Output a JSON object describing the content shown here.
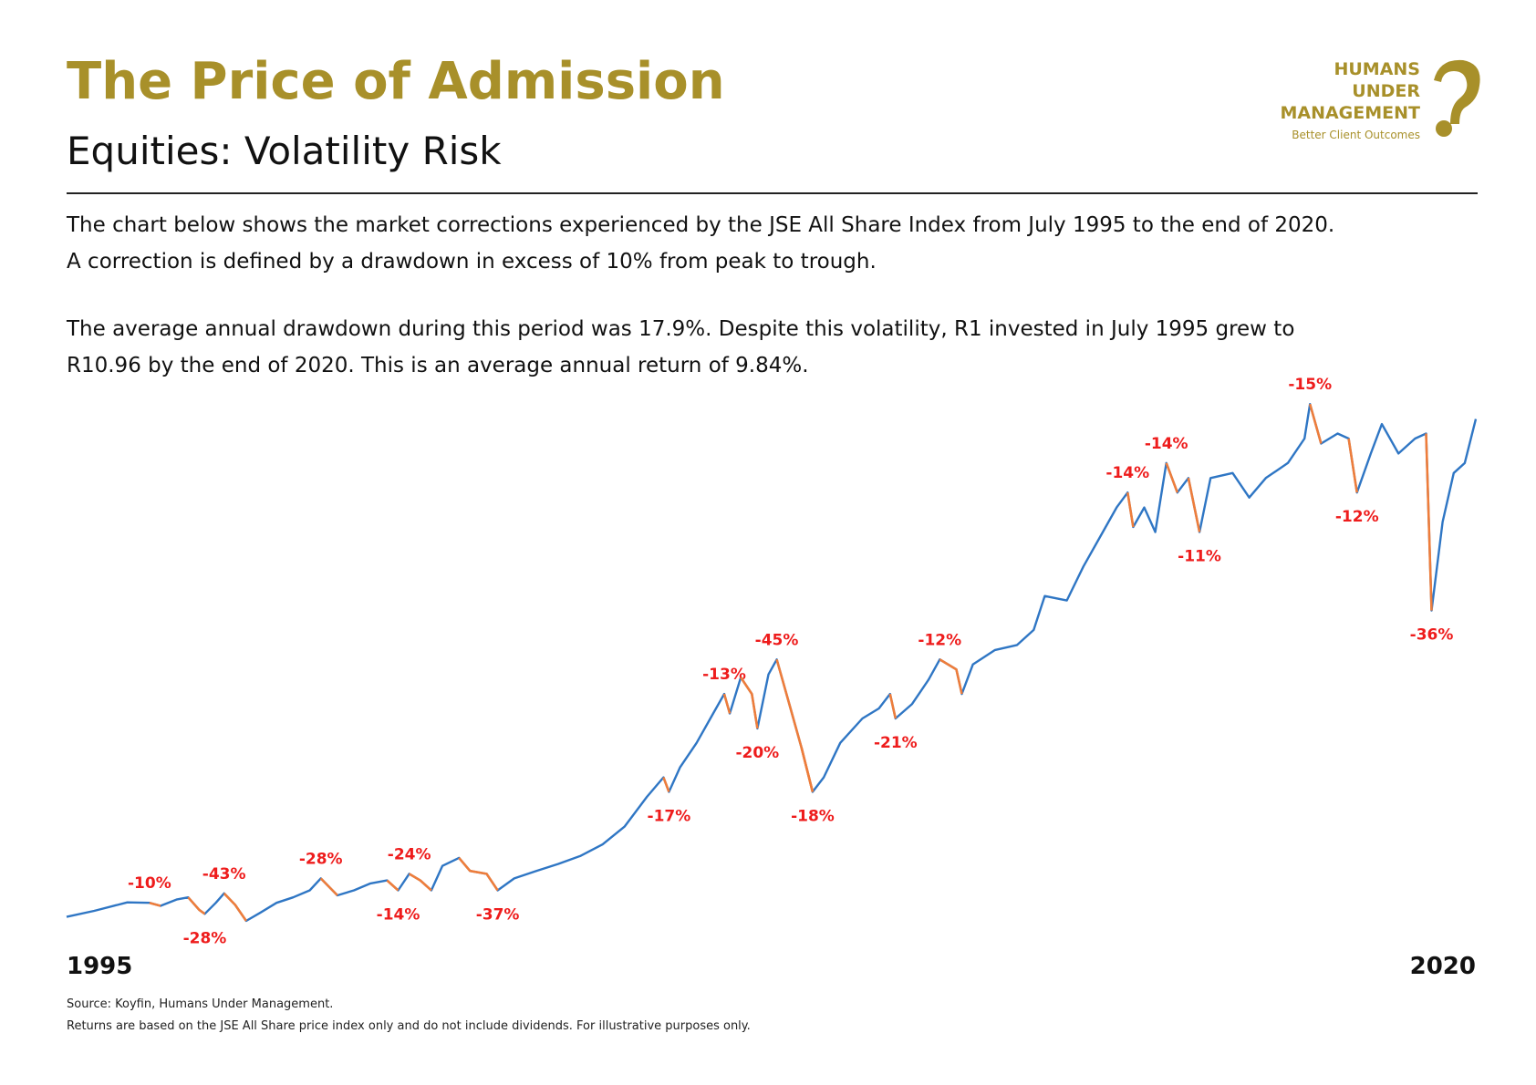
{
  "header": {
    "title": "The Price of Admission",
    "subtitle": "Equities: Volatility Risk",
    "logo": {
      "lines": [
        "HUMANS",
        "UNDER",
        "MANAGEMENT"
      ],
      "tagline": "Better Client Outcomes"
    }
  },
  "intro": [
    [
      "The chart below shows the market corrections experienced by the JSE All Share Index from July 1995 to the end of 2020.",
      "A correction is defined by a drawdown in excess of 10% from peak to trough."
    ],
    [
      "The average annual drawdown during this period was 17.9%. Despite this volatility, R1 invested in July 1995 grew to",
      "R10.96 by the end of 2020. This is an average annual return of 9.84%."
    ]
  ],
  "chart_data": {
    "type": "line",
    "x": [
      1995.5,
      1996.0,
      1996.6,
      1997.0,
      1997.2,
      1997.5,
      1997.7,
      1997.9,
      1998.0,
      1998.2,
      1998.35,
      1998.55,
      1998.75,
      1999.0,
      1999.3,
      1999.6,
      1999.9,
      2000.1,
      2000.4,
      2000.7,
      2001.0,
      2001.3,
      2001.5,
      2001.7,
      2001.9,
      2002.1,
      2002.3,
      2002.6,
      2002.8,
      2003.1,
      2003.3,
      2003.6,
      2004.0,
      2004.4,
      2004.8,
      2005.2,
      2005.6,
      2006.0,
      2006.3,
      2006.4,
      2006.6,
      2006.9,
      2007.2,
      2007.4,
      2007.5,
      2007.7,
      2007.9,
      2008.0,
      2008.2,
      2008.35,
      2008.6,
      2008.8,
      2009.0,
      2009.2,
      2009.5,
      2009.9,
      2010.2,
      2010.4,
      2010.5,
      2010.8,
      2011.1,
      2011.3,
      2011.6,
      2011.7,
      2011.9,
      2012.3,
      2012.7,
      2013.0,
      2013.2,
      2013.6,
      2013.9,
      2014.2,
      2014.5,
      2014.7,
      2014.8,
      2015.0,
      2015.2,
      2015.4,
      2015.6,
      2015.8,
      2016.0,
      2016.2,
      2016.6,
      2016.9,
      2017.2,
      2017.6,
      2017.9,
      2018.0,
      2018.2,
      2018.5,
      2018.7,
      2018.85,
      2019.1,
      2019.3,
      2019.6,
      2019.9,
      2020.1,
      2020.2,
      2020.4,
      2020.6,
      2020.8,
      2021.0
    ],
    "values": [
      1.0,
      1.12,
      1.29,
      1.28,
      1.22,
      1.35,
      1.39,
      1.14,
      1.06,
      1.28,
      1.47,
      1.24,
      0.92,
      1.08,
      1.28,
      1.39,
      1.53,
      1.77,
      1.43,
      1.53,
      1.67,
      1.73,
      1.53,
      1.86,
      1.73,
      1.53,
      2.02,
      2.18,
      1.92,
      1.86,
      1.53,
      1.77,
      1.92,
      2.06,
      2.22,
      2.45,
      2.81,
      3.4,
      3.79,
      3.5,
      3.99,
      4.48,
      5.07,
      5.46,
      5.07,
      5.79,
      5.46,
      4.77,
      5.85,
      6.15,
      5.17,
      4.38,
      3.5,
      3.79,
      4.48,
      4.97,
      5.17,
      5.46,
      4.97,
      5.26,
      5.75,
      6.15,
      5.95,
      5.46,
      6.05,
      6.34,
      6.44,
      6.74,
      7.42,
      7.33,
      8.01,
      8.6,
      9.19,
      9.49,
      8.8,
      9.19,
      8.7,
      10.08,
      9.49,
      9.78,
      8.7,
      9.78,
      9.88,
      9.39,
      9.78,
      10.08,
      10.57,
      11.26,
      10.47,
      10.67,
      10.57,
      9.49,
      10.27,
      10.86,
      10.27,
      10.57,
      10.67,
      7.13,
      8.9,
      9.88,
      10.08,
      10.96
    ],
    "color": "#2f76c4",
    "correction_color": "#ee7d3b",
    "label_color": "#ee1c1c",
    "xlim": [
      1995.5,
      2021.0
    ],
    "ylim": [
      0.5,
      11.5
    ],
    "xticks": [
      {
        "value": 1995.5,
        "label": "1995"
      },
      {
        "value": 2021.0,
        "label": "2020"
      }
    ],
    "corrections": [
      {
        "label": "-10%",
        "peak": 1997.0,
        "trough": 1997.2,
        "label_at": "peak"
      },
      {
        "label": "-28%",
        "peak": 1997.7,
        "trough": 1998.0,
        "label_at": "trough"
      },
      {
        "label": "-43%",
        "peak": 1998.35,
        "trough": 1998.75,
        "label_at": "peak"
      },
      {
        "label": "-28%",
        "peak": 2000.1,
        "trough": 2000.4,
        "label_at": "peak"
      },
      {
        "label": "-14%",
        "peak": 2001.3,
        "trough": 2001.5,
        "label_at": "trough"
      },
      {
        "label": "-24%",
        "peak": 2001.7,
        "trough": 2002.1,
        "label_at": "peak"
      },
      {
        "label": "-37%",
        "peak": 2002.6,
        "trough": 2003.3,
        "label_at": "trough"
      },
      {
        "label": "-17%",
        "peak": 2006.3,
        "trough": 2006.4,
        "label_at": "trough"
      },
      {
        "label": "-13%",
        "peak": 2007.4,
        "trough": 2007.5,
        "label_at": "peak"
      },
      {
        "label": "-20%",
        "peak": 2007.7,
        "trough": 2008.0,
        "label_at": "trough"
      },
      {
        "label": "-45%",
        "peak": 2008.35,
        "trough": 2009.0,
        "label_at": "peak"
      },
      {
        "label": "-18%",
        "peak": 2008.8,
        "trough": 2009.0,
        "label_at": "trough"
      },
      {
        "label": "-21%",
        "peak": 2010.4,
        "trough": 2010.5,
        "label_at": "trough"
      },
      {
        "label": "-12%",
        "peak": 2011.3,
        "trough": 2011.7,
        "label_at": "peak"
      },
      {
        "label": "-14%",
        "peak": 2014.7,
        "trough": 2014.8,
        "label_at": "peak"
      },
      {
        "label": "-14%",
        "peak": 2015.4,
        "trough": 2015.6,
        "label_at": "peak"
      },
      {
        "label": "-11%",
        "peak": 2015.8,
        "trough": 2016.0,
        "label_at": "trough"
      },
      {
        "label": "-15%",
        "peak": 2018.0,
        "trough": 2018.2,
        "label_at": "peak"
      },
      {
        "label": "-12%",
        "peak": 2018.7,
        "trough": 2018.85,
        "label_at": "trough"
      },
      {
        "label": "-36%",
        "peak": 2020.1,
        "trough": 2020.2,
        "label_at": "trough"
      }
    ]
  },
  "footer": [
    "Source: Koyfin, Humans Under Management.",
    "Returns are based on the JSE All Share price index only and do not include dividends. For illustrative purposes only."
  ]
}
